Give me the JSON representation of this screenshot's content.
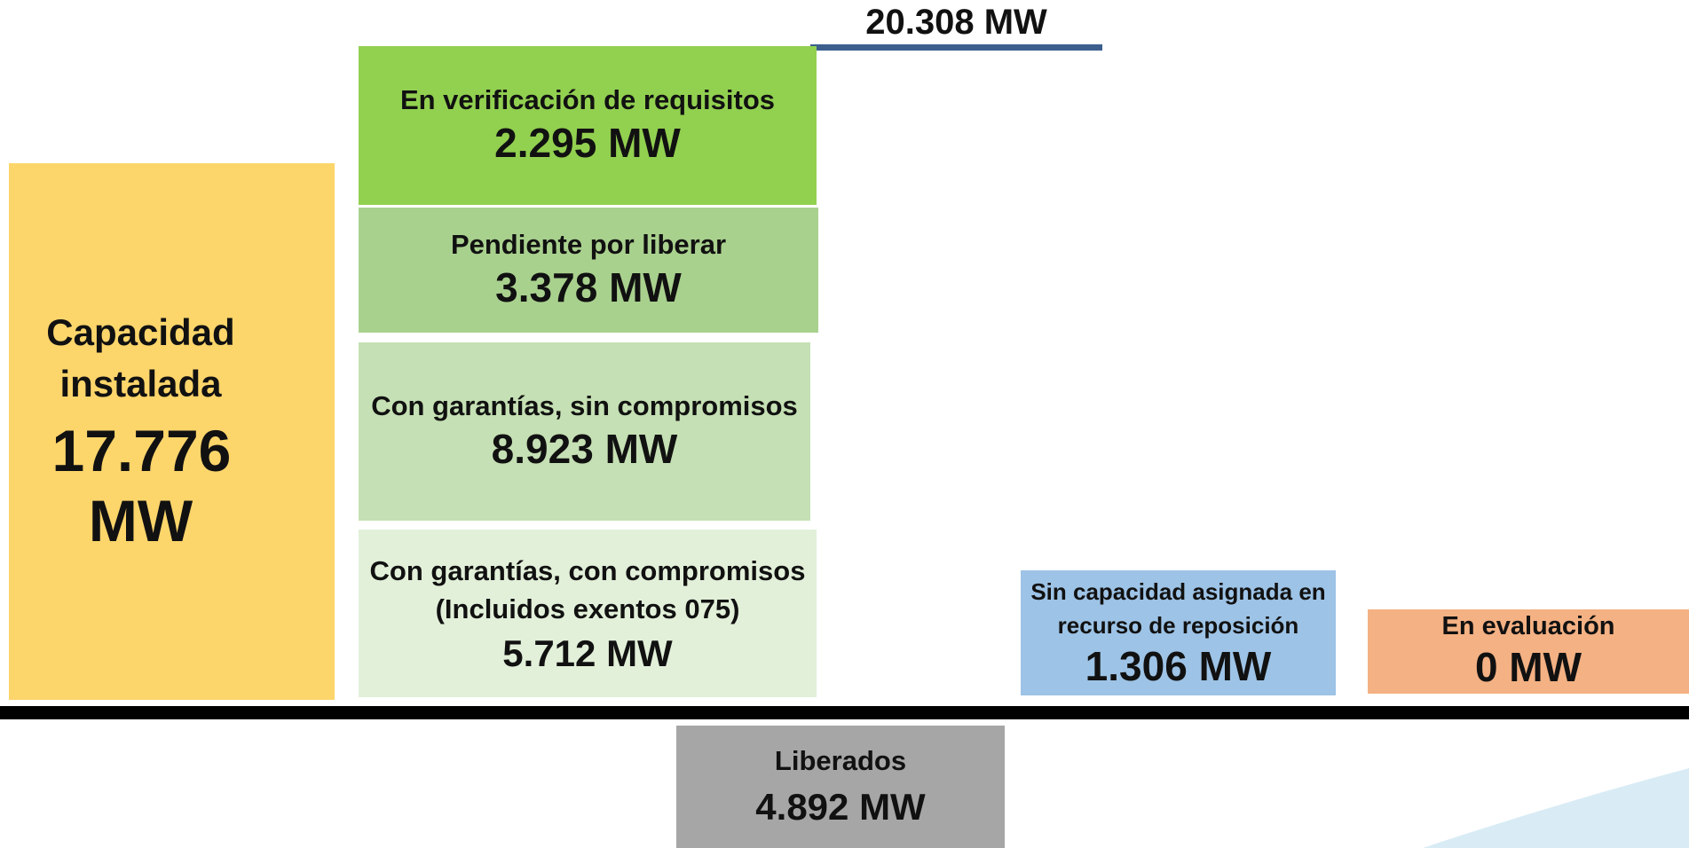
{
  "total": "20.308 MW",
  "installed": {
    "label": "Capacidad instalada",
    "value": "17.776 MW"
  },
  "stack": [
    {
      "label": "En verificación de requisitos",
      "value": "2.295 MW"
    },
    {
      "label": "Pendiente por liberar",
      "value": "3.378 MW"
    },
    {
      "label": "Con garantías, sin compromisos",
      "value": "8.923 MW"
    },
    {
      "label": "Con garantías, con compromisos (Incluidos exentos 075)",
      "value": "5.712 MW"
    }
  ],
  "unassigned": {
    "label": "Sin capacidad asignada en recurso de reposición",
    "value": "1.306 MW"
  },
  "evaluation": {
    "label": "En evaluación",
    "value": "0 MW"
  },
  "released": {
    "label": "Liberados",
    "value": "4.892 MW"
  }
}
